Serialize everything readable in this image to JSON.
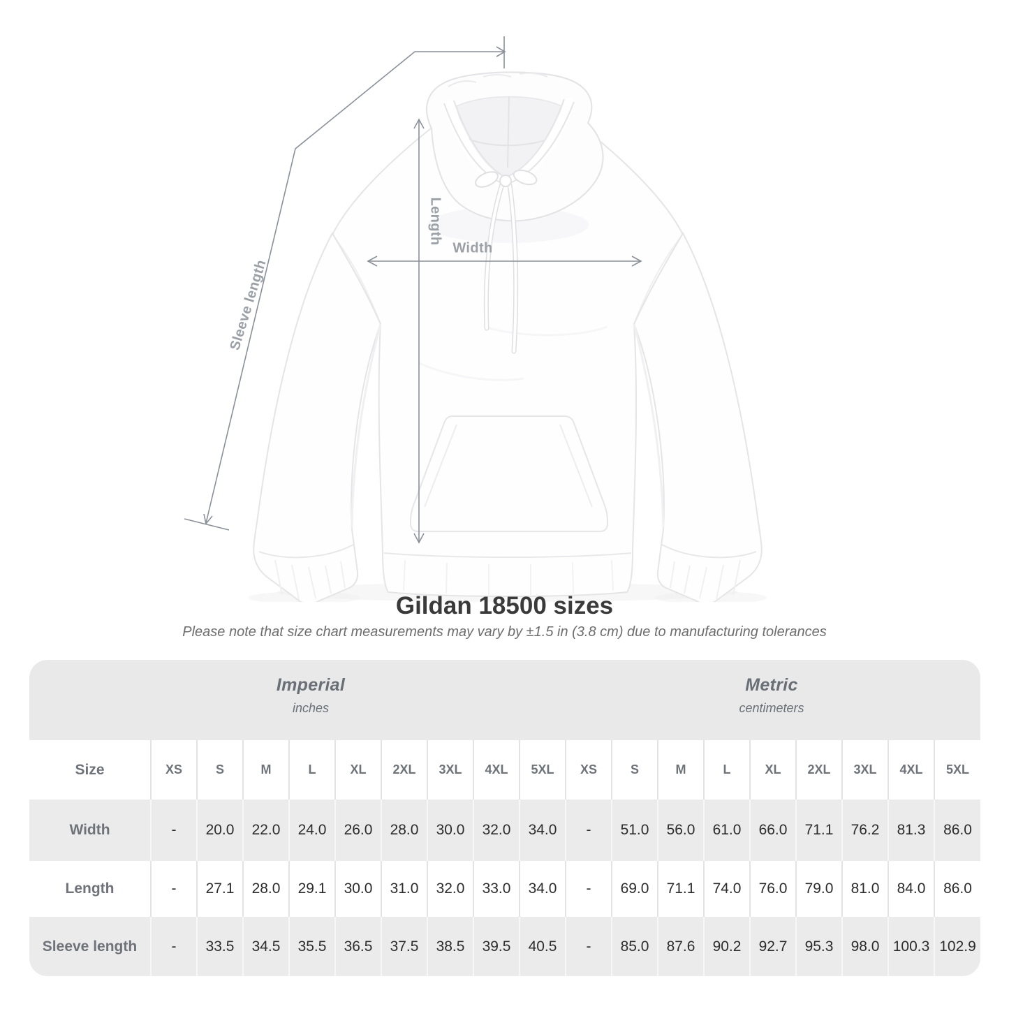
{
  "figure": {
    "labels": {
      "sleeve": "Sleeve length",
      "length": "Length",
      "width": "Width"
    }
  },
  "title": "Gildan 18500 sizes",
  "subtitle": "Please note that size chart measurements may vary by ±1.5 in (3.8 cm) due to manufacturing tolerances",
  "table": {
    "corner_label": "Size",
    "unit_groups": [
      {
        "title": "Imperial",
        "subtitle": "inches"
      },
      {
        "title": "Metric",
        "subtitle": "centimeters"
      }
    ],
    "sizes": [
      "XS",
      "S",
      "M",
      "L",
      "XL",
      "2XL",
      "3XL",
      "4XL",
      "5XL"
    ],
    "rows": [
      {
        "label": "Width",
        "imperial": [
          "-",
          "20.0",
          "22.0",
          "24.0",
          "26.0",
          "28.0",
          "30.0",
          "32.0",
          "34.0"
        ],
        "metric": [
          "-",
          "51.0",
          "56.0",
          "61.0",
          "66.0",
          "71.1",
          "76.2",
          "81.3",
          "86.0"
        ]
      },
      {
        "label": "Length",
        "imperial": [
          "-",
          "27.1",
          "28.0",
          "29.1",
          "30.0",
          "31.0",
          "32.0",
          "33.0",
          "34.0"
        ],
        "metric": [
          "-",
          "69.0",
          "71.1",
          "74.0",
          "76.0",
          "79.0",
          "81.0",
          "84.0",
          "86.0"
        ]
      },
      {
        "label": "Sleeve length",
        "imperial": [
          "-",
          "33.5",
          "34.5",
          "35.5",
          "36.5",
          "37.5",
          "38.5",
          "39.5",
          "40.5"
        ],
        "metric": [
          "-",
          "85.0",
          "87.6",
          "90.2",
          "92.7",
          "95.3",
          "98.0",
          "100.3",
          "102.9"
        ]
      }
    ]
  },
  "colors": {
    "arrow": "#8a9099",
    "annotation_label": "#9aa0a6",
    "title_text": "#3a3a3a",
    "subtitle_text": "#6d6d6d",
    "band_background": "#e9e9e9",
    "row_alt_background": "#ebebeb",
    "table_text": "#2c2c2c",
    "header_text": "#6e737a"
  }
}
